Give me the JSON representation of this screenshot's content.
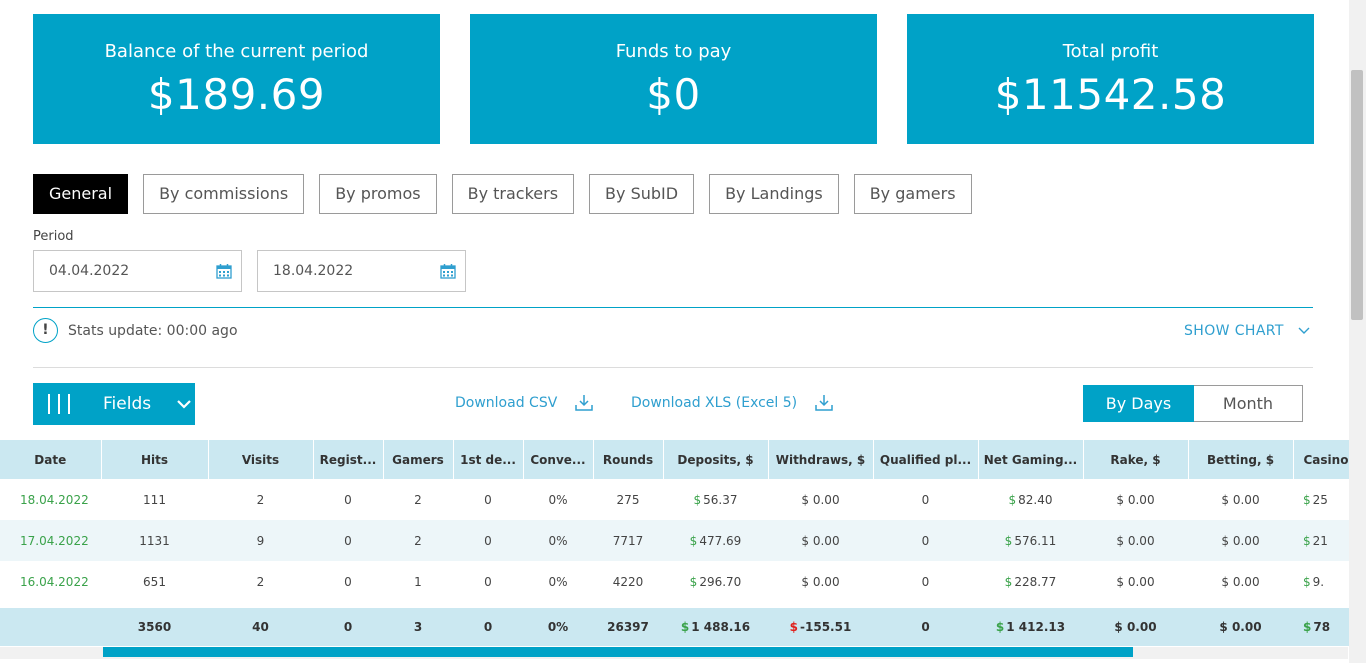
{
  "cards": [
    {
      "label": "Balance of the current period",
      "value": "$189.69"
    },
    {
      "label": "Funds to pay",
      "value": "$0"
    },
    {
      "label": "Total profit",
      "value": "$11542.58"
    }
  ],
  "tabs": [
    {
      "label": "General",
      "active": true
    },
    {
      "label": "By commissions"
    },
    {
      "label": "By promos"
    },
    {
      "label": "By trackers"
    },
    {
      "label": "By SubID"
    },
    {
      "label": "By Landings"
    },
    {
      "label": "By gamers"
    }
  ],
  "period": {
    "label": "Period",
    "from": "04.04.2022",
    "to": "18.04.2022"
  },
  "stats_update": "Stats update: 00:00 ago",
  "show_chart": "SHOW CHART",
  "fields_button": "Fields",
  "download_csv": "Download CSV",
  "download_xls": "Download XLS (Excel 5)",
  "granularity": {
    "days": "By Days",
    "month": "Month"
  },
  "table": {
    "headers": [
      "Date",
      "Hits",
      "Visits",
      "Regist...",
      "Gamers",
      "1st de...",
      "Conve...",
      "Rounds",
      "Deposits, $",
      "Withdraws, $",
      "Qualified pl...",
      "Net Gaming...",
      "Rake, $",
      "Betting, $",
      "Casino"
    ],
    "rows": [
      [
        "18.04.2022",
        "111",
        "2",
        "0",
        "2",
        "0",
        "0%",
        "275",
        "56.37",
        "0.00",
        "0",
        "82.40",
        "0.00",
        "0.00",
        "25"
      ],
      [
        "17.04.2022",
        "1131",
        "9",
        "0",
        "2",
        "0",
        "0%",
        "7717",
        "477.69",
        "0.00",
        "0",
        "576.11",
        "0.00",
        "0.00",
        "21"
      ],
      [
        "16.04.2022",
        "651",
        "2",
        "0",
        "1",
        "0",
        "0%",
        "4220",
        "296.70",
        "0.00",
        "0",
        "228.77",
        "0.00",
        "0.00",
        "9."
      ]
    ],
    "totals": [
      "",
      "3560",
      "40",
      "0",
      "3",
      "0",
      "0%",
      "26397",
      "1 488.16",
      "-155.51",
      "0",
      "1 412.13",
      "0.00",
      "0.00",
      "78"
    ]
  },
  "colors": {
    "accent": "#00a2c7",
    "green": "#3aa24a",
    "red": "#e0201c",
    "header_bg": "#cbe8f1"
  }
}
